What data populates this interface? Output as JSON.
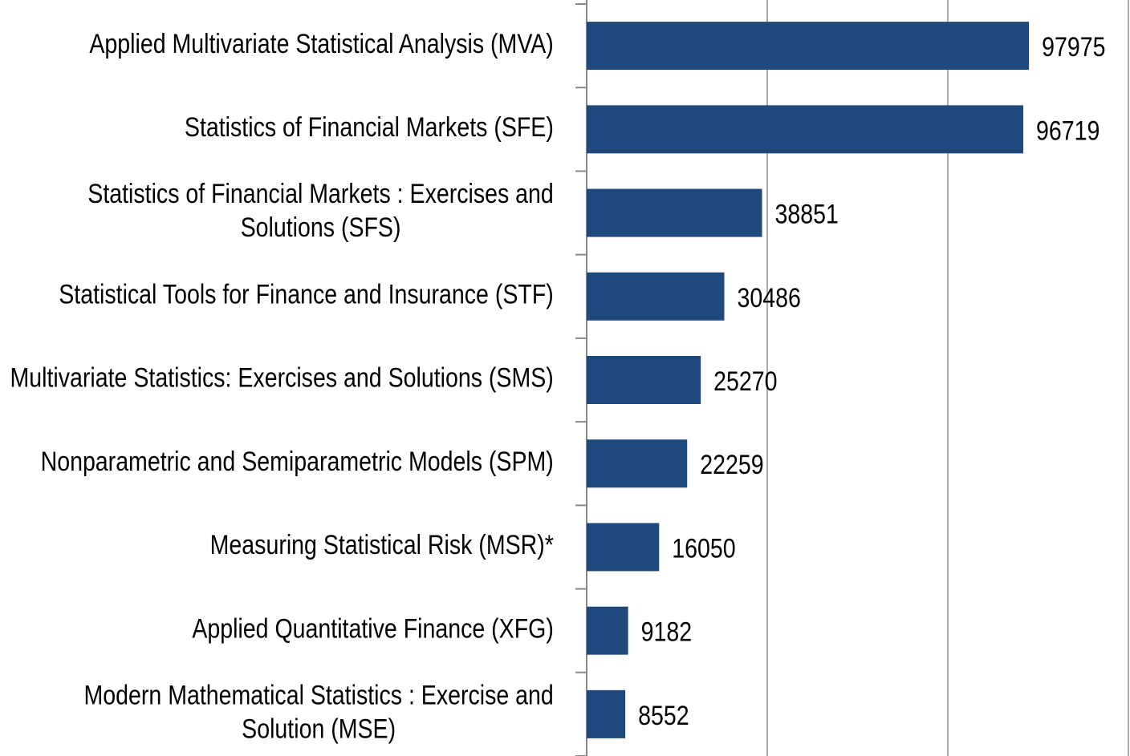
{
  "chart_data": {
    "type": "barh",
    "categories": [
      "Applied Multivariate Statistical Analysis (MVA)",
      "Statistics of Financial Markets (SFE)",
      "Statistics of Financial Markets : Exercises and Solutions (SFS)",
      "Statistical Tools for Finance and Insurance (STF)",
      "Multivariate Statistics: Exercises and Solutions (SMS)",
      "Nonparametric and Semiparametric Models (SPM)",
      "Measuring Statistical Risk (MSR)*",
      "Applied Quantitative Finance (XFG)",
      "Modern Mathematical Statistics : Exercise and Solution (MSE)"
    ],
    "values": [
      97975,
      96719,
      38851,
      30486,
      25270,
      22259,
      16050,
      9182,
      8552
    ],
    "color": "#1f497d",
    "xlim": [
      0,
      120000
    ],
    "xticks": [
      0,
      40000,
      80000,
      120000
    ],
    "grid": true
  }
}
